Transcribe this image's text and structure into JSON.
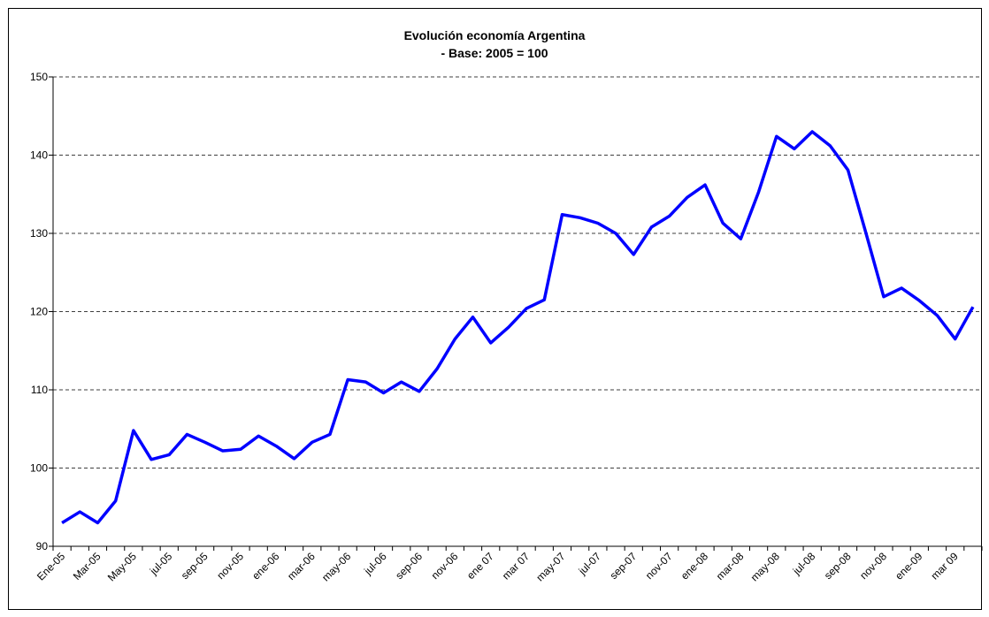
{
  "chart_data": {
    "type": "line",
    "title": "Evolución economía Argentina",
    "subtitle": "- Base: 2005 = 100",
    "categories": [
      "Ene-05",
      null,
      "Mar-05",
      null,
      "May-05",
      null,
      "jul-05",
      null,
      "sep-05",
      null,
      "nov-05",
      null,
      "ene-06",
      null,
      "mar-06",
      null,
      "may-06",
      null,
      "jul-06",
      null,
      "sep-06",
      null,
      "nov-06",
      null,
      "ene 07",
      null,
      "mar 07",
      null,
      "may-07",
      null,
      "jul-07",
      null,
      "sep-07",
      null,
      "nov-07",
      null,
      "ene-08",
      null,
      "mar-08",
      null,
      "may-08",
      null,
      "jul-08",
      null,
      "sep-08",
      null,
      "nov-08",
      null,
      "ene-09",
      null,
      "mar 09",
      null
    ],
    "series": [
      {
        "color": "#0000ff",
        "values": [
          93,
          94.4,
          93,
          95.8,
          104.8,
          101.1,
          101.7,
          104.3,
          103.3,
          102.2,
          102.4,
          104.1,
          102.8,
          101.2,
          103.3,
          104.3,
          111.3,
          111,
          109.6,
          111,
          109.8,
          112.7,
          116.5,
          119.3,
          116,
          118,
          120.4,
          121.5,
          132.4,
          132,
          131.3,
          130,
          127.3,
          130.8,
          132.2,
          134.6,
          136.2,
          131.3,
          129.3,
          135.3,
          142.4,
          140.8,
          143,
          141.2,
          138.1,
          130.1,
          121.9,
          123,
          121.4,
          119.5,
          116.5,
          120.6
        ]
      }
    ],
    "ylim": [
      90,
      150
    ],
    "yticks": [
      90,
      100,
      110,
      120,
      130,
      140,
      150
    ],
    "grid": true
  }
}
